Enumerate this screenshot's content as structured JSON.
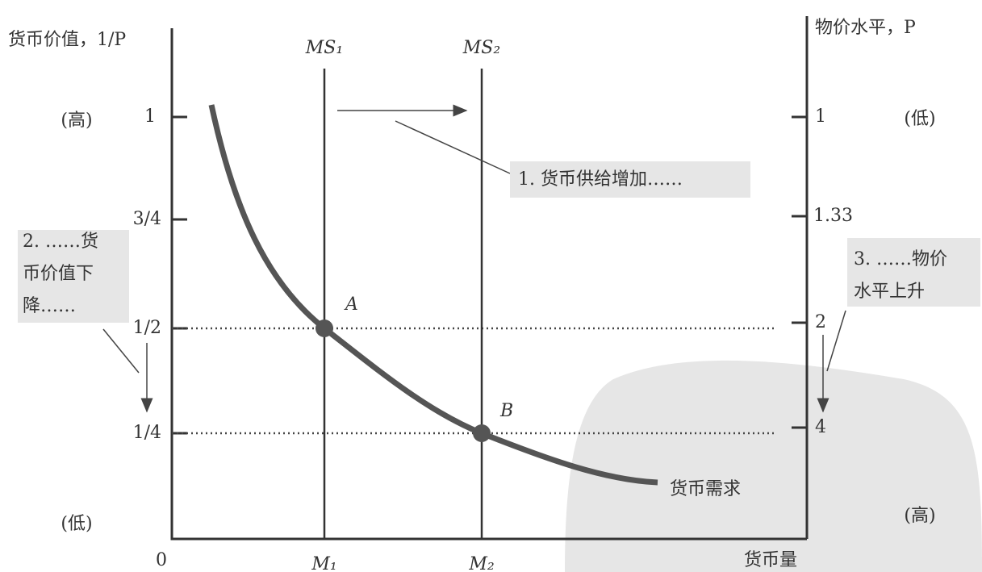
{
  "axes": {
    "left_title": "货币价值，1/P",
    "right_title": "物价水平，P",
    "origin": "0",
    "x_title": "货币量",
    "left_ticks": [
      "1",
      "3/4",
      "1/2",
      "1/4"
    ],
    "right_ticks": [
      "1",
      "1.33",
      "2",
      "4"
    ],
    "left_high": "(高)",
    "left_low": "(低)",
    "right_low": "(低)",
    "right_high": "(高)"
  },
  "supply": {
    "ms1": "MS₁",
    "ms2": "MS₂",
    "m1": "M₁",
    "m2": "M₂"
  },
  "demand": {
    "label": "货币需求"
  },
  "points": {
    "a": "A",
    "b": "B"
  },
  "notes": {
    "one": [
      "1. 货币供给增加……"
    ],
    "two": [
      "2. ……货",
      "币价值下",
      "降……"
    ],
    "three": [
      "3. ……物价",
      "水平上升"
    ]
  }
}
